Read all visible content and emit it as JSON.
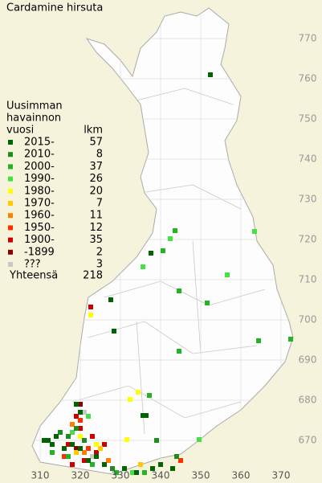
{
  "title": "Cardamine hirsuta",
  "legend": {
    "heading": [
      "Uusimman",
      "havainnon",
      "vuosi"
    ],
    "count_heading": "lkm",
    "items": [
      {
        "label": "2015-",
        "count": 57,
        "color": "#006400",
        "points": [
          [
            352.4,
            761
          ],
          [
            337.6,
            716.6
          ],
          [
            328.4,
            697.2
          ],
          [
            327.6,
            705
          ],
          [
            335.6,
            676.2
          ],
          [
            336.4,
            676.2
          ],
          [
            311,
            670
          ],
          [
            312,
            670
          ],
          [
            313,
            669
          ],
          [
            314,
            671
          ],
          [
            316,
            668
          ],
          [
            318,
            669
          ],
          [
            320,
            668
          ],
          [
            322,
            665
          ],
          [
            324,
            666
          ],
          [
            326,
            664
          ],
          [
            338,
            663
          ],
          [
            340,
            664
          ],
          [
            343,
            663
          ],
          [
            319,
            679
          ],
          [
            320,
            677
          ],
          [
            331,
            663
          ],
          [
            334,
            662
          ]
        ]
      },
      {
        "label": "2010-",
        "count": 8,
        "color": "#1e8c1e",
        "points": [
          [
            315,
            672
          ],
          [
            317,
            671
          ],
          [
            319,
            673
          ],
          [
            321,
            670
          ],
          [
            339,
            670
          ],
          [
            344,
            666
          ],
          [
            328,
            663
          ]
        ]
      },
      {
        "label": "2000-",
        "count": 37,
        "color": "#22b422",
        "points": [
          [
            343.6,
            722.2
          ],
          [
            340.6,
            717.2
          ],
          [
            344.6,
            707.2
          ],
          [
            351.6,
            704.2
          ],
          [
            344.6,
            692.2
          ],
          [
            364.4,
            694.8
          ],
          [
            372.4,
            695.2
          ],
          [
            337.2,
            681.2
          ],
          [
            313,
            667
          ],
          [
            317,
            666
          ],
          [
            323,
            664
          ],
          [
            329,
            662
          ],
          [
            336,
            662
          ]
        ]
      },
      {
        "label": "1990-",
        "count": 26,
        "color": "#44e044",
        "points": [
          [
            342.4,
            720.2
          ],
          [
            363.4,
            722
          ],
          [
            356.6,
            711.2
          ],
          [
            335.6,
            713.2
          ],
          [
            349.6,
            670.2
          ],
          [
            318,
            672
          ],
          [
            322,
            676
          ],
          [
            333,
            662
          ]
        ]
      },
      {
        "label": "1980-",
        "count": 20,
        "color": "#ffff00",
        "points": [
          [
            332.4,
            680.2
          ],
          [
            334.4,
            682
          ],
          [
            331.6,
            670.2
          ],
          [
            322.6,
            701.2
          ],
          [
            320,
            671
          ],
          [
            324,
            669
          ]
        ]
      },
      {
        "label": "1970-",
        "count": 7,
        "color": "#ffc800",
        "points": [
          [
            319,
            667
          ],
          [
            325,
            668
          ],
          [
            335,
            664
          ]
        ]
      },
      {
        "label": "1960-",
        "count": 11,
        "color": "#ff8000",
        "points": [
          [
            318,
            674
          ],
          [
            321,
            667
          ],
          [
            327,
            665
          ]
        ]
      },
      {
        "label": "1950-",
        "count": 12,
        "color": "#ff3000",
        "points": [
          [
            316,
            666
          ],
          [
            320,
            675
          ],
          [
            322,
            668
          ],
          [
            345,
            665
          ]
        ]
      },
      {
        "label": "1900-",
        "count": 35,
        "color": "#cc0000",
        "points": [
          [
            322.6,
            703.2
          ],
          [
            319,
            676
          ],
          [
            320,
            673
          ],
          [
            317,
            669
          ],
          [
            321,
            665
          ],
          [
            323,
            671
          ],
          [
            324,
            667
          ],
          [
            326,
            669
          ],
          [
            318,
            664
          ]
        ]
      },
      {
        "label": "-1899",
        "count": 2,
        "color": "#880000",
        "points": [
          [
            320,
            679
          ],
          [
            319,
            668
          ]
        ]
      },
      {
        "label": "???",
        "count": 3,
        "color": "#c8c8c8",
        "points": [
          [
            321,
            677
          ],
          [
            323,
            666
          ]
        ]
      }
    ],
    "total_label": "Yhteensä",
    "total": 218
  },
  "axes": {
    "xticks": [
      310,
      320,
      330,
      340,
      350,
      360,
      370
    ],
    "yticks": [
      670,
      680,
      690,
      700,
      710,
      720,
      730,
      740,
      750,
      760,
      770
    ]
  }
}
